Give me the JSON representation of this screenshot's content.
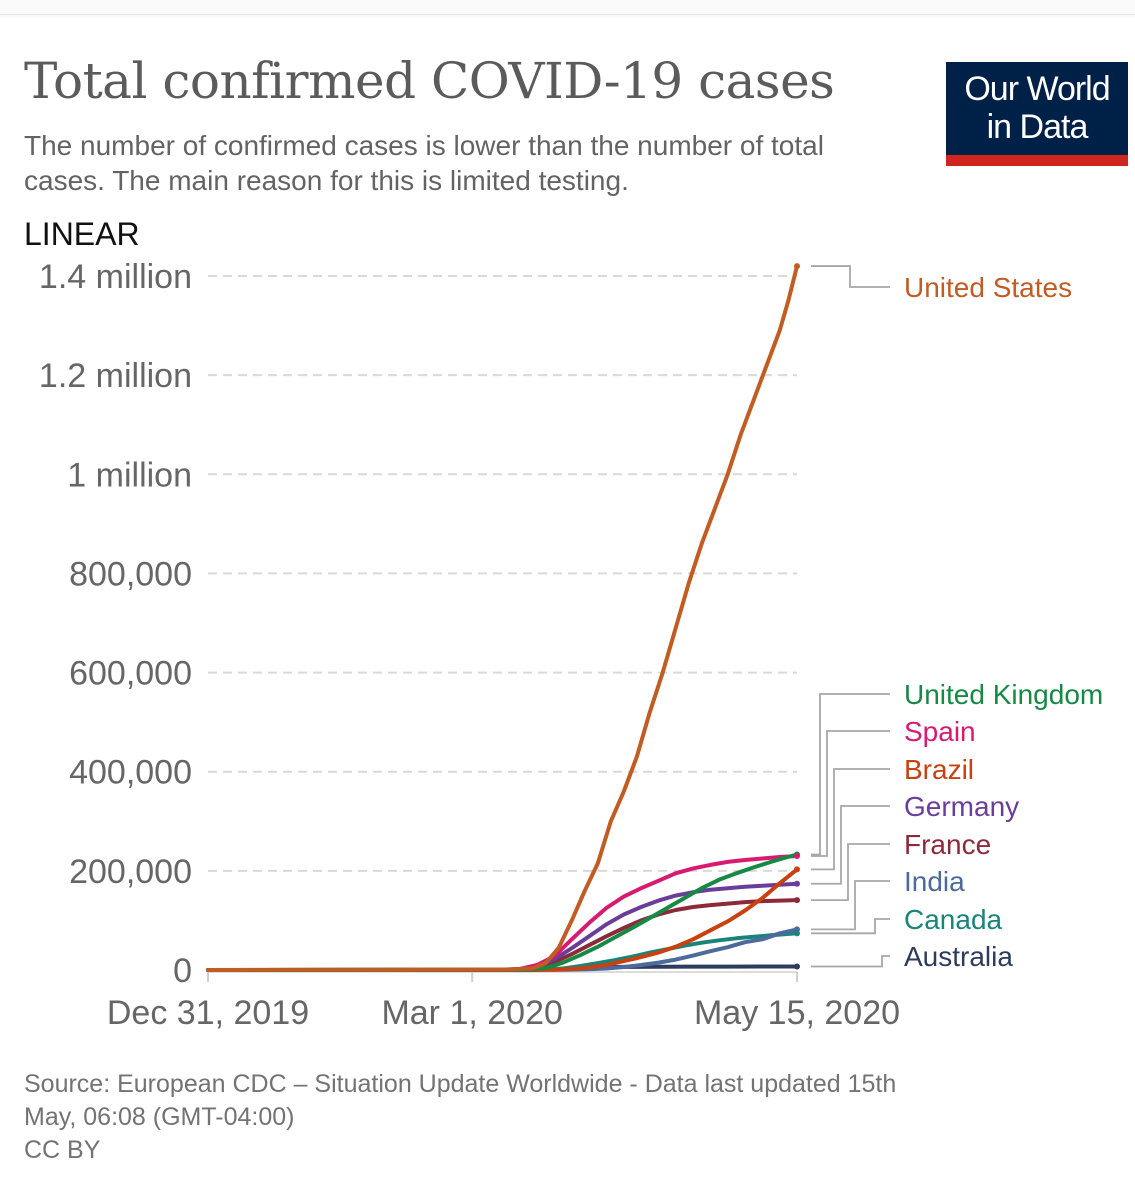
{
  "header": {
    "title": "Total confirmed COVID-19 cases",
    "subtitle": "The number of confirmed cases is lower than the number of total cases. The main reason for this is limited testing.",
    "logo_line1": "Our World",
    "logo_line2": "in Data",
    "scale_toggle": "LINEAR"
  },
  "colors": {
    "logo_bg": "#002147",
    "logo_accent": "#ce261e",
    "grid": "#d9d9d9",
    "axis_text": "#666666"
  },
  "footer": {
    "source_line1": "Source: European CDC – Situation Update Worldwide - Data last updated 15th",
    "source_line2": "May, 06:08 (GMT-04:00)",
    "license": "CC BY"
  },
  "chart_data": {
    "type": "line",
    "title": "Total confirmed COVID-19 cases",
    "xlabel": "",
    "ylabel": "",
    "x_unit": "days since Dec 31, 2019",
    "xlim": [
      0,
      136
    ],
    "ylim": [
      0,
      1400000
    ],
    "grid": true,
    "legend": "right (line-end labels)",
    "x_ticks": [
      {
        "day": 0,
        "label": "Dec 31, 2019"
      },
      {
        "day": 61,
        "label": "Mar 1, 2020"
      },
      {
        "day": 136,
        "label": "May 15, 2020"
      }
    ],
    "y_ticks": [
      {
        "value": 0,
        "label": "0"
      },
      {
        "value": 200000,
        "label": "200,000"
      },
      {
        "value": 400000,
        "label": "400,000"
      },
      {
        "value": 600000,
        "label": "600,000"
      },
      {
        "value": 800000,
        "label": "800,000"
      },
      {
        "value": 1000000,
        "label": "1 million"
      },
      {
        "value": 1200000,
        "label": "1.2 million"
      },
      {
        "value": 1400000,
        "label": "1.4 million"
      }
    ],
    "series": [
      {
        "name": "United States",
        "color": "#c15c23",
        "points": [
          [
            0,
            0
          ],
          [
            70,
            1000
          ],
          [
            75,
            3500
          ],
          [
            78,
            14000
          ],
          [
            81,
            45000
          ],
          [
            84,
            100000
          ],
          [
            87,
            160000
          ],
          [
            90,
            215000
          ],
          [
            93,
            300000
          ],
          [
            96,
            360000
          ],
          [
            99,
            430000
          ],
          [
            102,
            520000
          ],
          [
            105,
            600000
          ],
          [
            108,
            690000
          ],
          [
            111,
            780000
          ],
          [
            114,
            860000
          ],
          [
            117,
            930000
          ],
          [
            120,
            1000000
          ],
          [
            123,
            1080000
          ],
          [
            126,
            1150000
          ],
          [
            129,
            1220000
          ],
          [
            132,
            1290000
          ],
          [
            134,
            1350000
          ],
          [
            136,
            1420000
          ]
        ]
      },
      {
        "name": "United Kingdom",
        "color": "#168a44",
        "points": [
          [
            0,
            0
          ],
          [
            72,
            500
          ],
          [
            78,
            4000
          ],
          [
            82,
            15000
          ],
          [
            86,
            30000
          ],
          [
            90,
            47000
          ],
          [
            94,
            66000
          ],
          [
            98,
            85000
          ],
          [
            102,
            105000
          ],
          [
            106,
            125000
          ],
          [
            110,
            145000
          ],
          [
            114,
            165000
          ],
          [
            118,
            182000
          ],
          [
            122,
            195000
          ],
          [
            126,
            207000
          ],
          [
            130,
            218000
          ],
          [
            133,
            226000
          ],
          [
            136,
            233000
          ]
        ]
      },
      {
        "name": "Spain",
        "color": "#d81b70",
        "points": [
          [
            0,
            0
          ],
          [
            68,
            200
          ],
          [
            72,
            2000
          ],
          [
            76,
            10000
          ],
          [
            80,
            28000
          ],
          [
            84,
            62000
          ],
          [
            88,
            95000
          ],
          [
            92,
            125000
          ],
          [
            96,
            148000
          ],
          [
            100,
            165000
          ],
          [
            104,
            180000
          ],
          [
            108,
            195000
          ],
          [
            112,
            205000
          ],
          [
            116,
            212000
          ],
          [
            120,
            218000
          ],
          [
            124,
            222000
          ],
          [
            128,
            225000
          ],
          [
            132,
            228000
          ],
          [
            136,
            230000
          ]
        ]
      },
      {
        "name": "Brazil",
        "color": "#c8410f",
        "points": [
          [
            0,
            0
          ],
          [
            80,
            500
          ],
          [
            86,
            3000
          ],
          [
            92,
            10000
          ],
          [
            96,
            18000
          ],
          [
            100,
            26000
          ],
          [
            104,
            35000
          ],
          [
            108,
            47000
          ],
          [
            112,
            62000
          ],
          [
            116,
            80000
          ],
          [
            120,
            98000
          ],
          [
            124,
            120000
          ],
          [
            128,
            145000
          ],
          [
            132,
            175000
          ],
          [
            136,
            203000
          ]
        ]
      },
      {
        "name": "Germany",
        "color": "#6a3d9a",
        "points": [
          [
            0,
            0
          ],
          [
            68,
            100
          ],
          [
            72,
            1000
          ],
          [
            76,
            6000
          ],
          [
            80,
            22000
          ],
          [
            84,
            44000
          ],
          [
            88,
            68000
          ],
          [
            92,
            92000
          ],
          [
            96,
            112000
          ],
          [
            100,
            127000
          ],
          [
            104,
            140000
          ],
          [
            108,
            150000
          ],
          [
            112,
            157000
          ],
          [
            116,
            162000
          ],
          [
            120,
            165000
          ],
          [
            124,
            168000
          ],
          [
            128,
            170000
          ],
          [
            132,
            172000
          ],
          [
            136,
            174000
          ]
        ]
      },
      {
        "name": "France",
        "color": "#8c2a3a",
        "points": [
          [
            0,
            0
          ],
          [
            66,
            200
          ],
          [
            72,
            2000
          ],
          [
            76,
            7000
          ],
          [
            80,
            16000
          ],
          [
            84,
            32000
          ],
          [
            88,
            50000
          ],
          [
            92,
            68000
          ],
          [
            96,
            85000
          ],
          [
            100,
            100000
          ],
          [
            104,
            112000
          ],
          [
            108,
            121000
          ],
          [
            112,
            127000
          ],
          [
            116,
            131000
          ],
          [
            120,
            134000
          ],
          [
            124,
            137000
          ],
          [
            128,
            139000
          ],
          [
            132,
            140000
          ],
          [
            136,
            141000
          ]
        ]
      },
      {
        "name": "India",
        "color": "#4c6a9c",
        "points": [
          [
            0,
            0
          ],
          [
            82,
            500
          ],
          [
            88,
            1500
          ],
          [
            92,
            3000
          ],
          [
            96,
            6000
          ],
          [
            100,
            10000
          ],
          [
            104,
            15000
          ],
          [
            108,
            21000
          ],
          [
            112,
            29000
          ],
          [
            116,
            38000
          ],
          [
            120,
            46000
          ],
          [
            124,
            56000
          ],
          [
            128,
            62000
          ],
          [
            132,
            74000
          ],
          [
            136,
            82000
          ]
        ]
      },
      {
        "name": "Canada",
        "color": "#18847a",
        "points": [
          [
            0,
            0
          ],
          [
            76,
            500
          ],
          [
            82,
            3000
          ],
          [
            86,
            8000
          ],
          [
            90,
            14000
          ],
          [
            94,
            20000
          ],
          [
            98,
            27000
          ],
          [
            102,
            35000
          ],
          [
            106,
            42000
          ],
          [
            110,
            49000
          ],
          [
            114,
            55000
          ],
          [
            118,
            60000
          ],
          [
            122,
            64000
          ],
          [
            126,
            67000
          ],
          [
            130,
            70000
          ],
          [
            133,
            72000
          ],
          [
            136,
            74000
          ]
        ]
      },
      {
        "name": "Australia",
        "color": "#2d3b5e",
        "points": [
          [
            0,
            0
          ],
          [
            76,
            500
          ],
          [
            82,
            2500
          ],
          [
            86,
            4500
          ],
          [
            90,
            5800
          ],
          [
            96,
            6300
          ],
          [
            104,
            6600
          ],
          [
            112,
            6800
          ],
          [
            120,
            6900
          ],
          [
            136,
            7000
          ]
        ]
      }
    ],
    "labels": [
      {
        "series": "United States",
        "text": "United States"
      },
      {
        "series": "United Kingdom",
        "text": "United Kingdom"
      },
      {
        "series": "Spain",
        "text": "Spain"
      },
      {
        "series": "Brazil",
        "text": "Brazil"
      },
      {
        "series": "Germany",
        "text": "Germany"
      },
      {
        "series": "France",
        "text": "France"
      },
      {
        "series": "India",
        "text": "India"
      },
      {
        "series": "Canada",
        "text": "Canada"
      },
      {
        "series": "Australia",
        "text": "Australia"
      }
    ]
  }
}
